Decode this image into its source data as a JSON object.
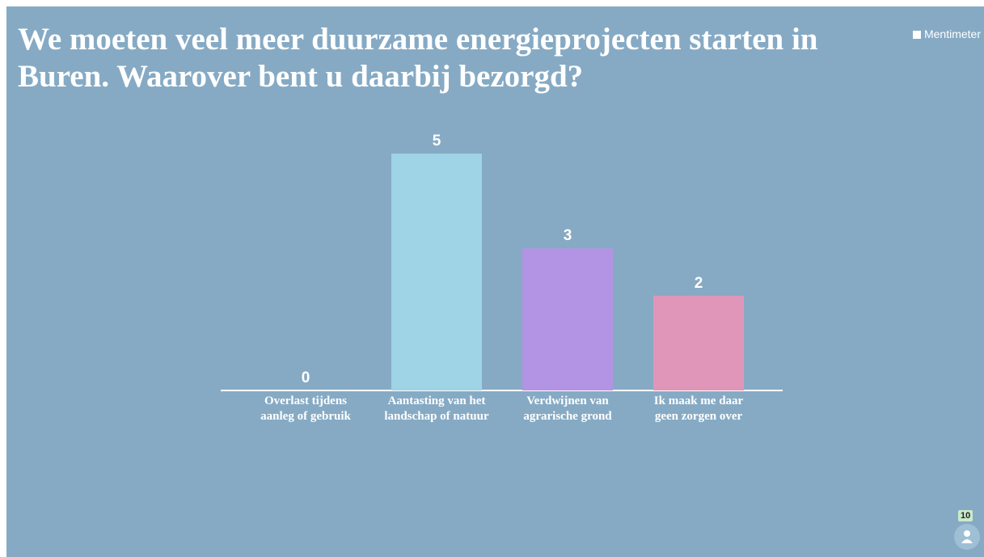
{
  "chart_data": {
    "type": "bar",
    "title": "We moeten veel meer duurzame energieprojecten starten in Buren. Waarover bent u daarbij bezorgd?",
    "categories": [
      "Overlast tijdens aanleg of gebruik",
      "Aantasting van het landschap of natuur",
      "Verdwijnen van agrarische grond",
      "Ik maak me daar geen zorgen over"
    ],
    "values": [
      0,
      5,
      3,
      2
    ],
    "colors": [
      "#9fd3e6",
      "#9fd3e6",
      "#b393e4",
      "#e096b8"
    ]
  },
  "brand": "Mentimeter",
  "participants": 10
}
